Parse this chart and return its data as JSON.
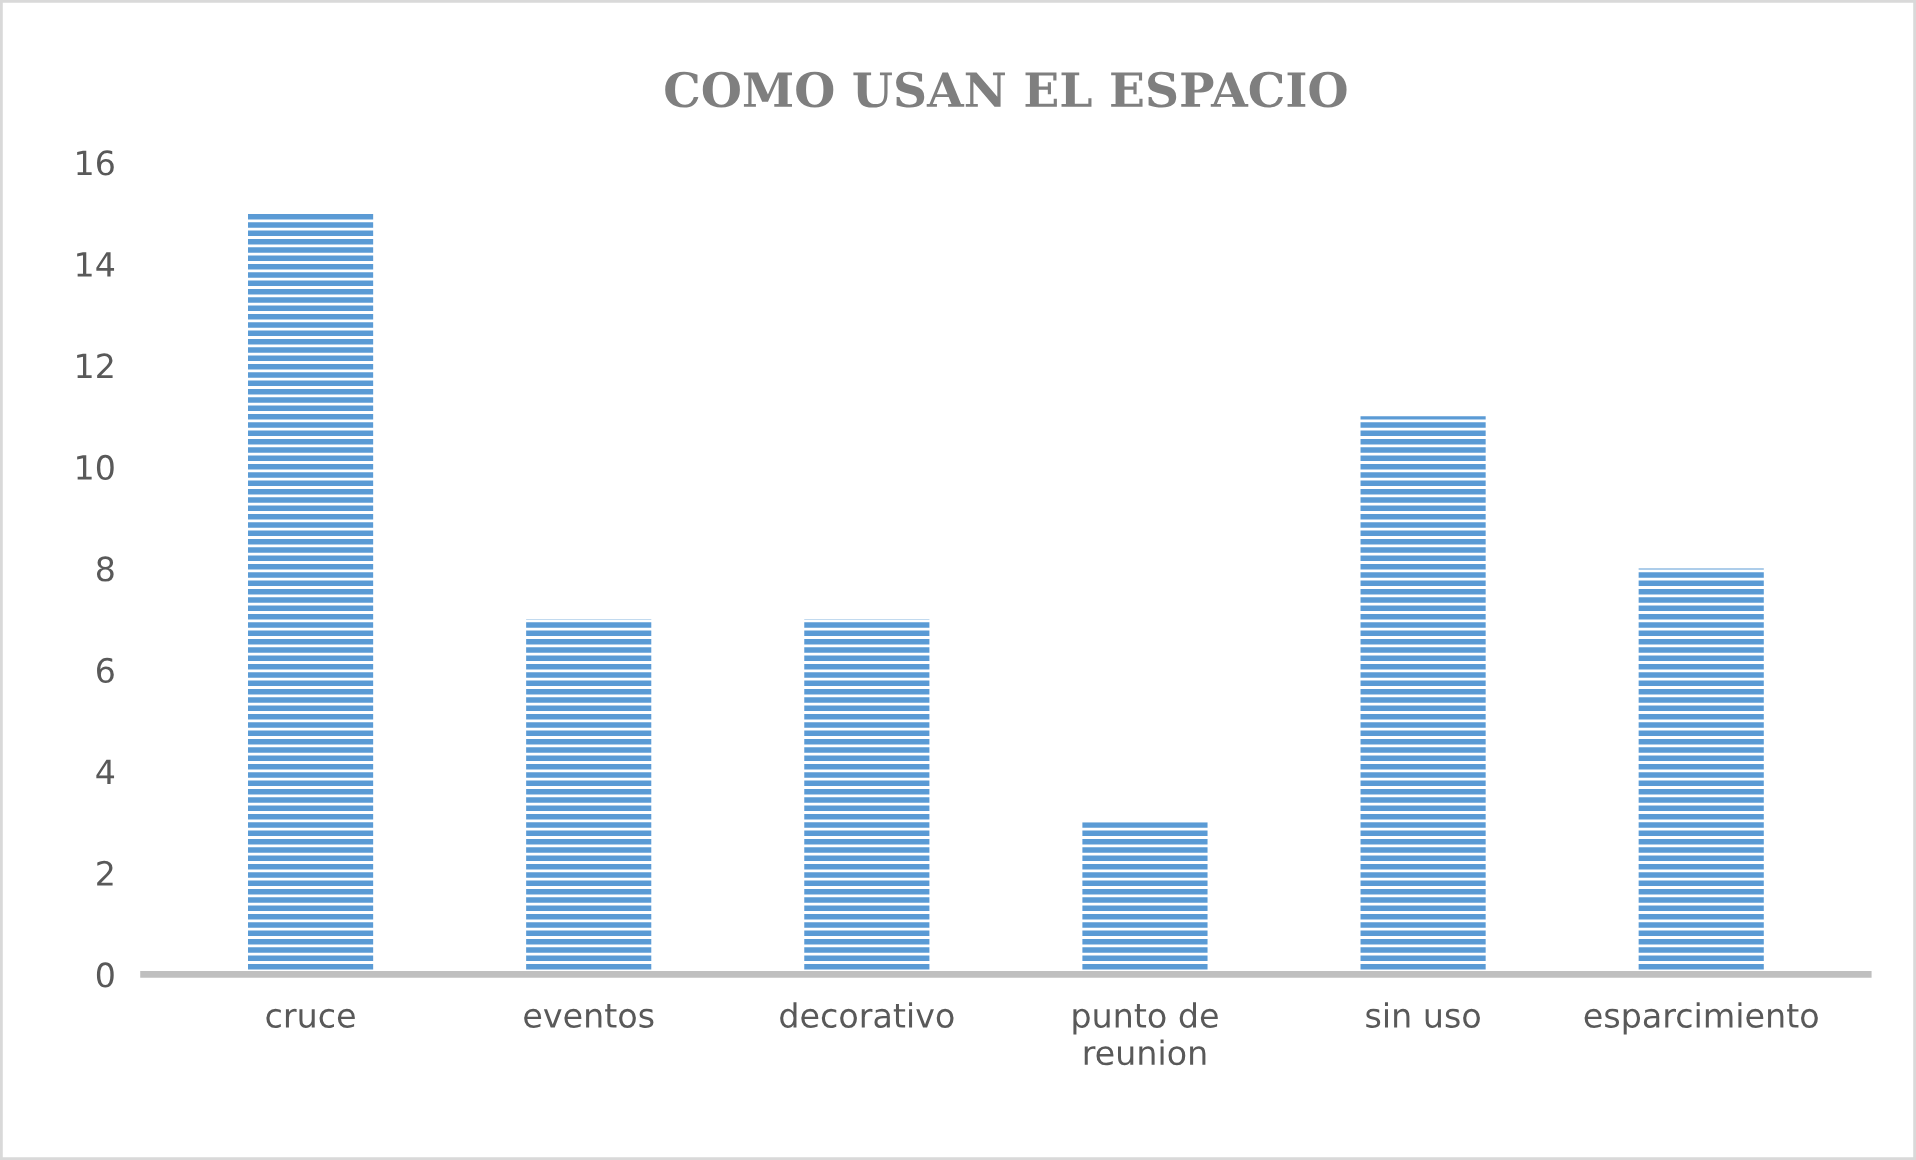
{
  "chart_data": {
    "type": "bar",
    "title": "COMO USAN EL ESPACIO",
    "categories": [
      "cruce",
      "eventos",
      "decorativo",
      "punto de\nreunion",
      "sin uso",
      "esparcimiento"
    ],
    "values": [
      15,
      7,
      7,
      3,
      11,
      8
    ],
    "color": "#5b9bd5",
    "ylim": [
      0,
      16
    ],
    "yticks": [
      0,
      2,
      4,
      6,
      8,
      10,
      12,
      14,
      16
    ],
    "grid": false,
    "legend": false
  }
}
